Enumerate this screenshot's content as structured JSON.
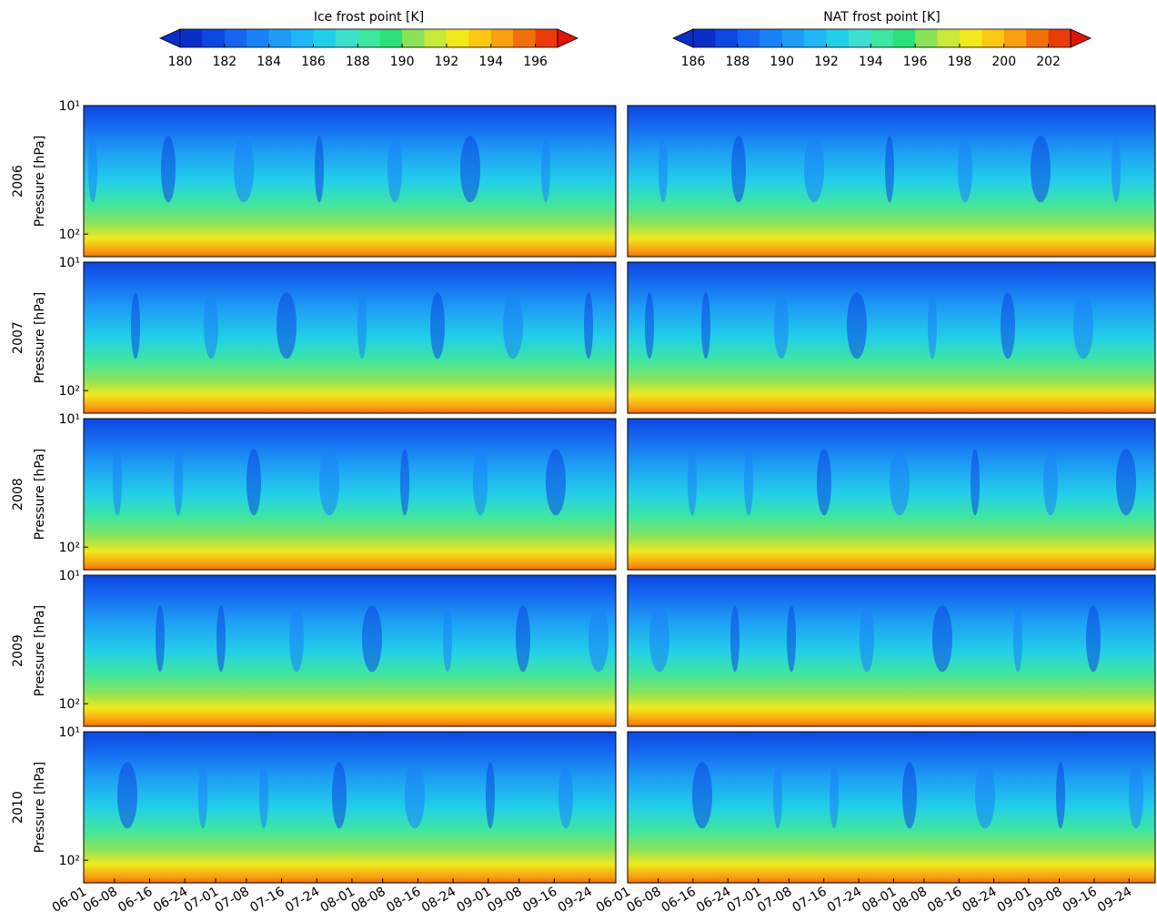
{
  "chart_data": {
    "type": "contour",
    "colorbars": [
      {
        "title": "Ice frost point [K]",
        "lim": [
          180,
          197
        ],
        "ticks": [
          180,
          182,
          184,
          186,
          188,
          190,
          192,
          194,
          196
        ]
      },
      {
        "title": "NAT frost point [K]",
        "lim": [
          186,
          203
        ],
        "ticks": [
          186,
          188,
          190,
          192,
          194,
          196,
          198,
          200,
          202
        ]
      }
    ],
    "colors": [
      "#0a2fc8",
      "#0d47e0",
      "#1565f0",
      "#1a82f5",
      "#1e9cf5",
      "#20b6f2",
      "#22cfe8",
      "#3de0cf",
      "#3fe6a0",
      "#2ee07a",
      "#8be35a",
      "#c8e83a",
      "#f2e81e",
      "#fbc814",
      "#f8a00e",
      "#f2700c",
      "#ea3c0a",
      "#e0140a"
    ],
    "rows": [
      "2006",
      "2007",
      "2008",
      "2009",
      "2010"
    ],
    "ylabel": "Pressure [hPa]",
    "ylim": [
      10,
      150
    ],
    "log_y": true,
    "yticks": [
      {
        "value": 10,
        "label": "10¹"
      },
      {
        "value": 100,
        "label": "10²"
      }
    ],
    "xlim_days": [
      0,
      121
    ],
    "xticks": [
      "06-01",
      "06-08",
      "06-16",
      "06-24",
      "07-01",
      "07-08",
      "07-16",
      "07-24",
      "08-01",
      "08-08",
      "08-16",
      "08-24",
      "09-01",
      "09-08",
      "09-16",
      "09-24"
    ]
  }
}
